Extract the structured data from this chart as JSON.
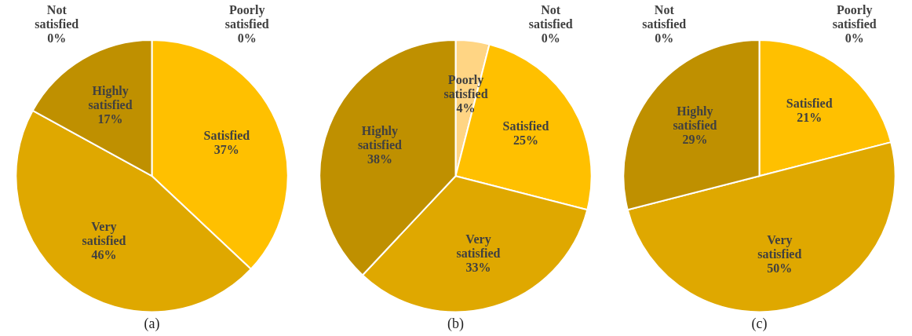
{
  "chart_data": [
    {
      "type": "pie",
      "title": "(a)",
      "categories": [
        "Poorly satisfied",
        "Satisfied",
        "Very satisfied",
        "Highly satisfied",
        "Not satisfied"
      ],
      "values": [
        0,
        37,
        46,
        17,
        0
      ],
      "colors": [
        "#ffd584",
        "#ffc000",
        "#dfa800",
        "#bf9000",
        "#fbe3a8"
      ],
      "value_labels": [
        "0%",
        "37%",
        "46%",
        "17%",
        "0%"
      ],
      "legend": false
    },
    {
      "type": "pie",
      "title": "(b)",
      "categories": [
        "Not satisfied",
        "Poorly satisfied",
        "Satisfied",
        "Very satisfied",
        "Highly satisfied"
      ],
      "values": [
        0,
        4,
        25,
        33,
        38
      ],
      "colors": [
        "#fbe3a8",
        "#ffd584",
        "#ffc000",
        "#dfa800",
        "#bf9000"
      ],
      "value_labels": [
        "0%",
        "4%",
        "25%",
        "33%",
        "38%"
      ],
      "legend": false
    },
    {
      "type": "pie",
      "title": "(c)",
      "categories": [
        "Poorly satisfied",
        "Satisfied",
        "Very satisfied",
        "Highly satisfied",
        "Not satisfied"
      ],
      "values": [
        0,
        21,
        50,
        29,
        0
      ],
      "colors": [
        "#ffd584",
        "#ffc000",
        "#dfa800",
        "#bf9000",
        "#fbe3a8"
      ],
      "value_labels": [
        "0%",
        "21%",
        "50%",
        "29%",
        "0%"
      ],
      "legend": false
    }
  ]
}
